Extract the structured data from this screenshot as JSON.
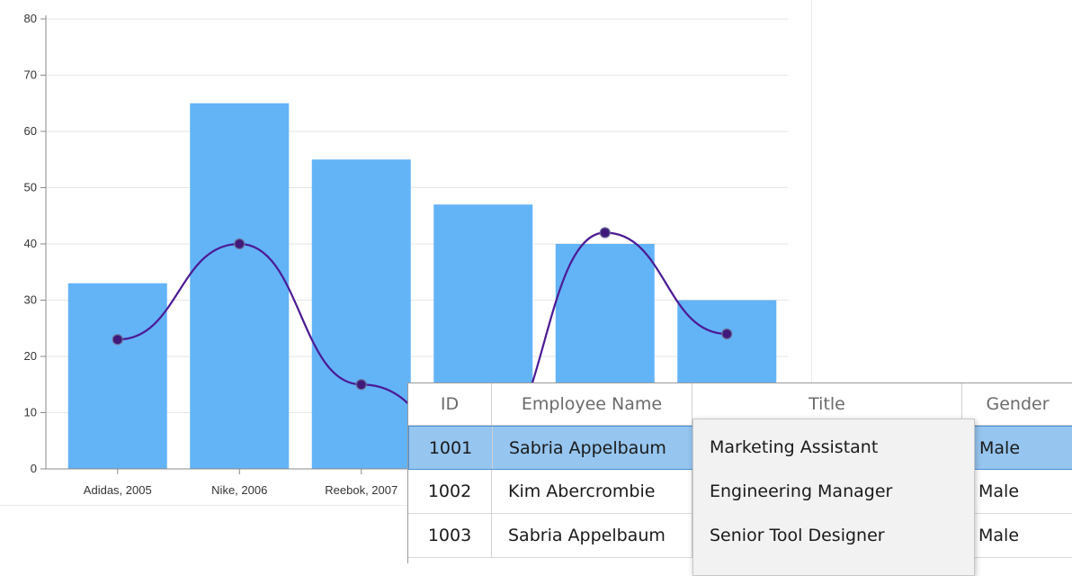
{
  "chart_data": {
    "type": "bar+line",
    "categories": [
      "Adidas, 2005",
      "Nike, 2006",
      "Reebok, 2007",
      "",
      "",
      ""
    ],
    "series": [
      {
        "type": "bar",
        "values": [
          33,
          65,
          55,
          47,
          40,
          30
        ]
      },
      {
        "type": "line",
        "smooth": true,
        "markers": true,
        "values": [
          23,
          40,
          15,
          3,
          42,
          24
        ]
      }
    ],
    "ylim": [
      0,
      80
    ],
    "yticks": [
      0,
      10,
      20,
      30,
      40,
      50,
      60,
      70,
      80
    ],
    "grid": true,
    "colors": {
      "bar": "#63b3f7",
      "line": "#4b1a94",
      "marker": "#3f1a7a",
      "grid": "#e6e6e6",
      "axis": "#8a8a8a"
    }
  },
  "grid": {
    "columns": [
      "ID",
      "Employee Name",
      "Title",
      "Gender"
    ],
    "rows": [
      {
        "id": "1001",
        "name": "Sabria Appelbaum",
        "gender": "Male",
        "selected": true
      },
      {
        "id": "1002",
        "name": "Kim Abercrombie",
        "gender": "Male"
      },
      {
        "id": "1003",
        "name": "Sabria Appelbaum",
        "gender": "Male"
      }
    ],
    "colors": {
      "selected_row": "#96c5ef",
      "selected_border": "#4a90d9"
    }
  },
  "dropdown": {
    "options": [
      "Marketing Assistant",
      "Engineering Manager",
      "Senior Tool Designer"
    ]
  }
}
